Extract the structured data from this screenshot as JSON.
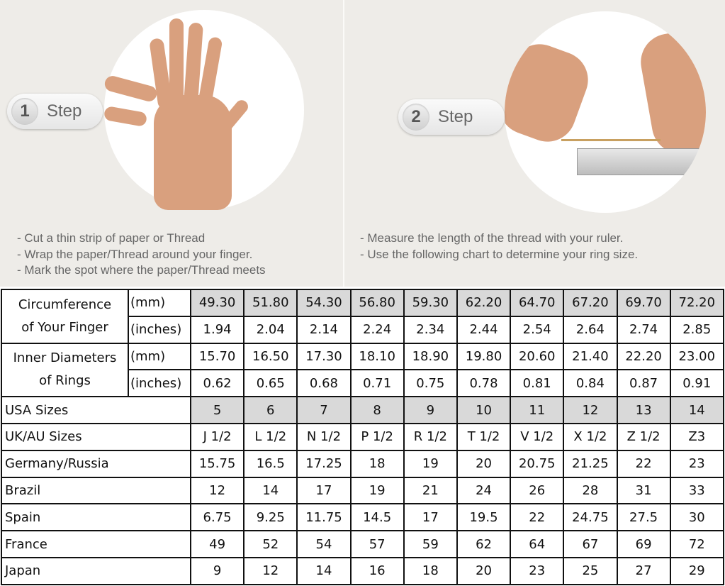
{
  "step1": {
    "number": "1",
    "label": "Step",
    "instructions": [
      "- Cut a thin strip of paper or Thread",
      "- Wrap the paper/Thread around your finger.",
      "- Mark the spot where the paper/Thread meets"
    ]
  },
  "step2": {
    "number": "2",
    "label": "Step",
    "instructions": [
      "- Measure the length of the thread with your ruler.",
      "- Use the following chart to determine your ring size."
    ]
  },
  "table": {
    "circumference": {
      "label1": "Circumference",
      "label2": "of Your Finger",
      "mm_unit": "(mm)",
      "in_unit": "(inches)",
      "mm": [
        "49.30",
        "51.80",
        "54.30",
        "56.80",
        "59.30",
        "62.20",
        "64.70",
        "67.20",
        "69.70",
        "72.20"
      ],
      "inches": [
        "1.94",
        "2.04",
        "2.14",
        "2.24",
        "2.34",
        "2.44",
        "2.54",
        "2.64",
        "2.74",
        "2.85"
      ]
    },
    "inner": {
      "label1": "Inner Diameters",
      "label2": "of Rings",
      "mm_unit": "(mm)",
      "in_unit": "(inches)",
      "mm": [
        "15.70",
        "16.50",
        "17.30",
        "18.10",
        "18.90",
        "19.80",
        "20.60",
        "21.40",
        "22.20",
        "23.00"
      ],
      "inches": [
        "0.62",
        "0.65",
        "0.68",
        "0.71",
        "0.75",
        "0.78",
        "0.81",
        "0.84",
        "0.87",
        "0.91"
      ]
    },
    "rows": [
      {
        "label": "USA Sizes",
        "values": [
          "5",
          "6",
          "7",
          "8",
          "9",
          "10",
          "11",
          "12",
          "13",
          "14"
        ]
      },
      {
        "label": "UK/AU Sizes",
        "values": [
          "J 1/2",
          "L 1/2",
          "N 1/2",
          "P 1/2",
          "R 1/2",
          "T 1/2",
          "V 1/2",
          "X 1/2",
          "Z 1/2",
          "Z3"
        ]
      },
      {
        "label": "Germany/Russia",
        "values": [
          "15.75",
          "16.5",
          "17.25",
          "18",
          "19",
          "20",
          "20.75",
          "21.25",
          "22",
          "23"
        ]
      },
      {
        "label": "Brazil",
        "values": [
          "12",
          "14",
          "17",
          "19",
          "21",
          "24",
          "26",
          "28",
          "31",
          "33"
        ]
      },
      {
        "label": "Spain",
        "values": [
          "6.75",
          "9.25",
          "11.75",
          "14.5",
          "17",
          "19.5",
          "22",
          "24.75",
          "27.5",
          "30"
        ]
      },
      {
        "label": "France",
        "values": [
          "49",
          "52",
          "54",
          "57",
          "59",
          "62",
          "64",
          "67",
          "69",
          "72"
        ]
      },
      {
        "label": "Japan",
        "values": [
          "9",
          "12",
          "14",
          "16",
          "18",
          "20",
          "23",
          "25",
          "27",
          "29"
        ]
      }
    ],
    "highlight_color": "#d9d9d9"
  }
}
